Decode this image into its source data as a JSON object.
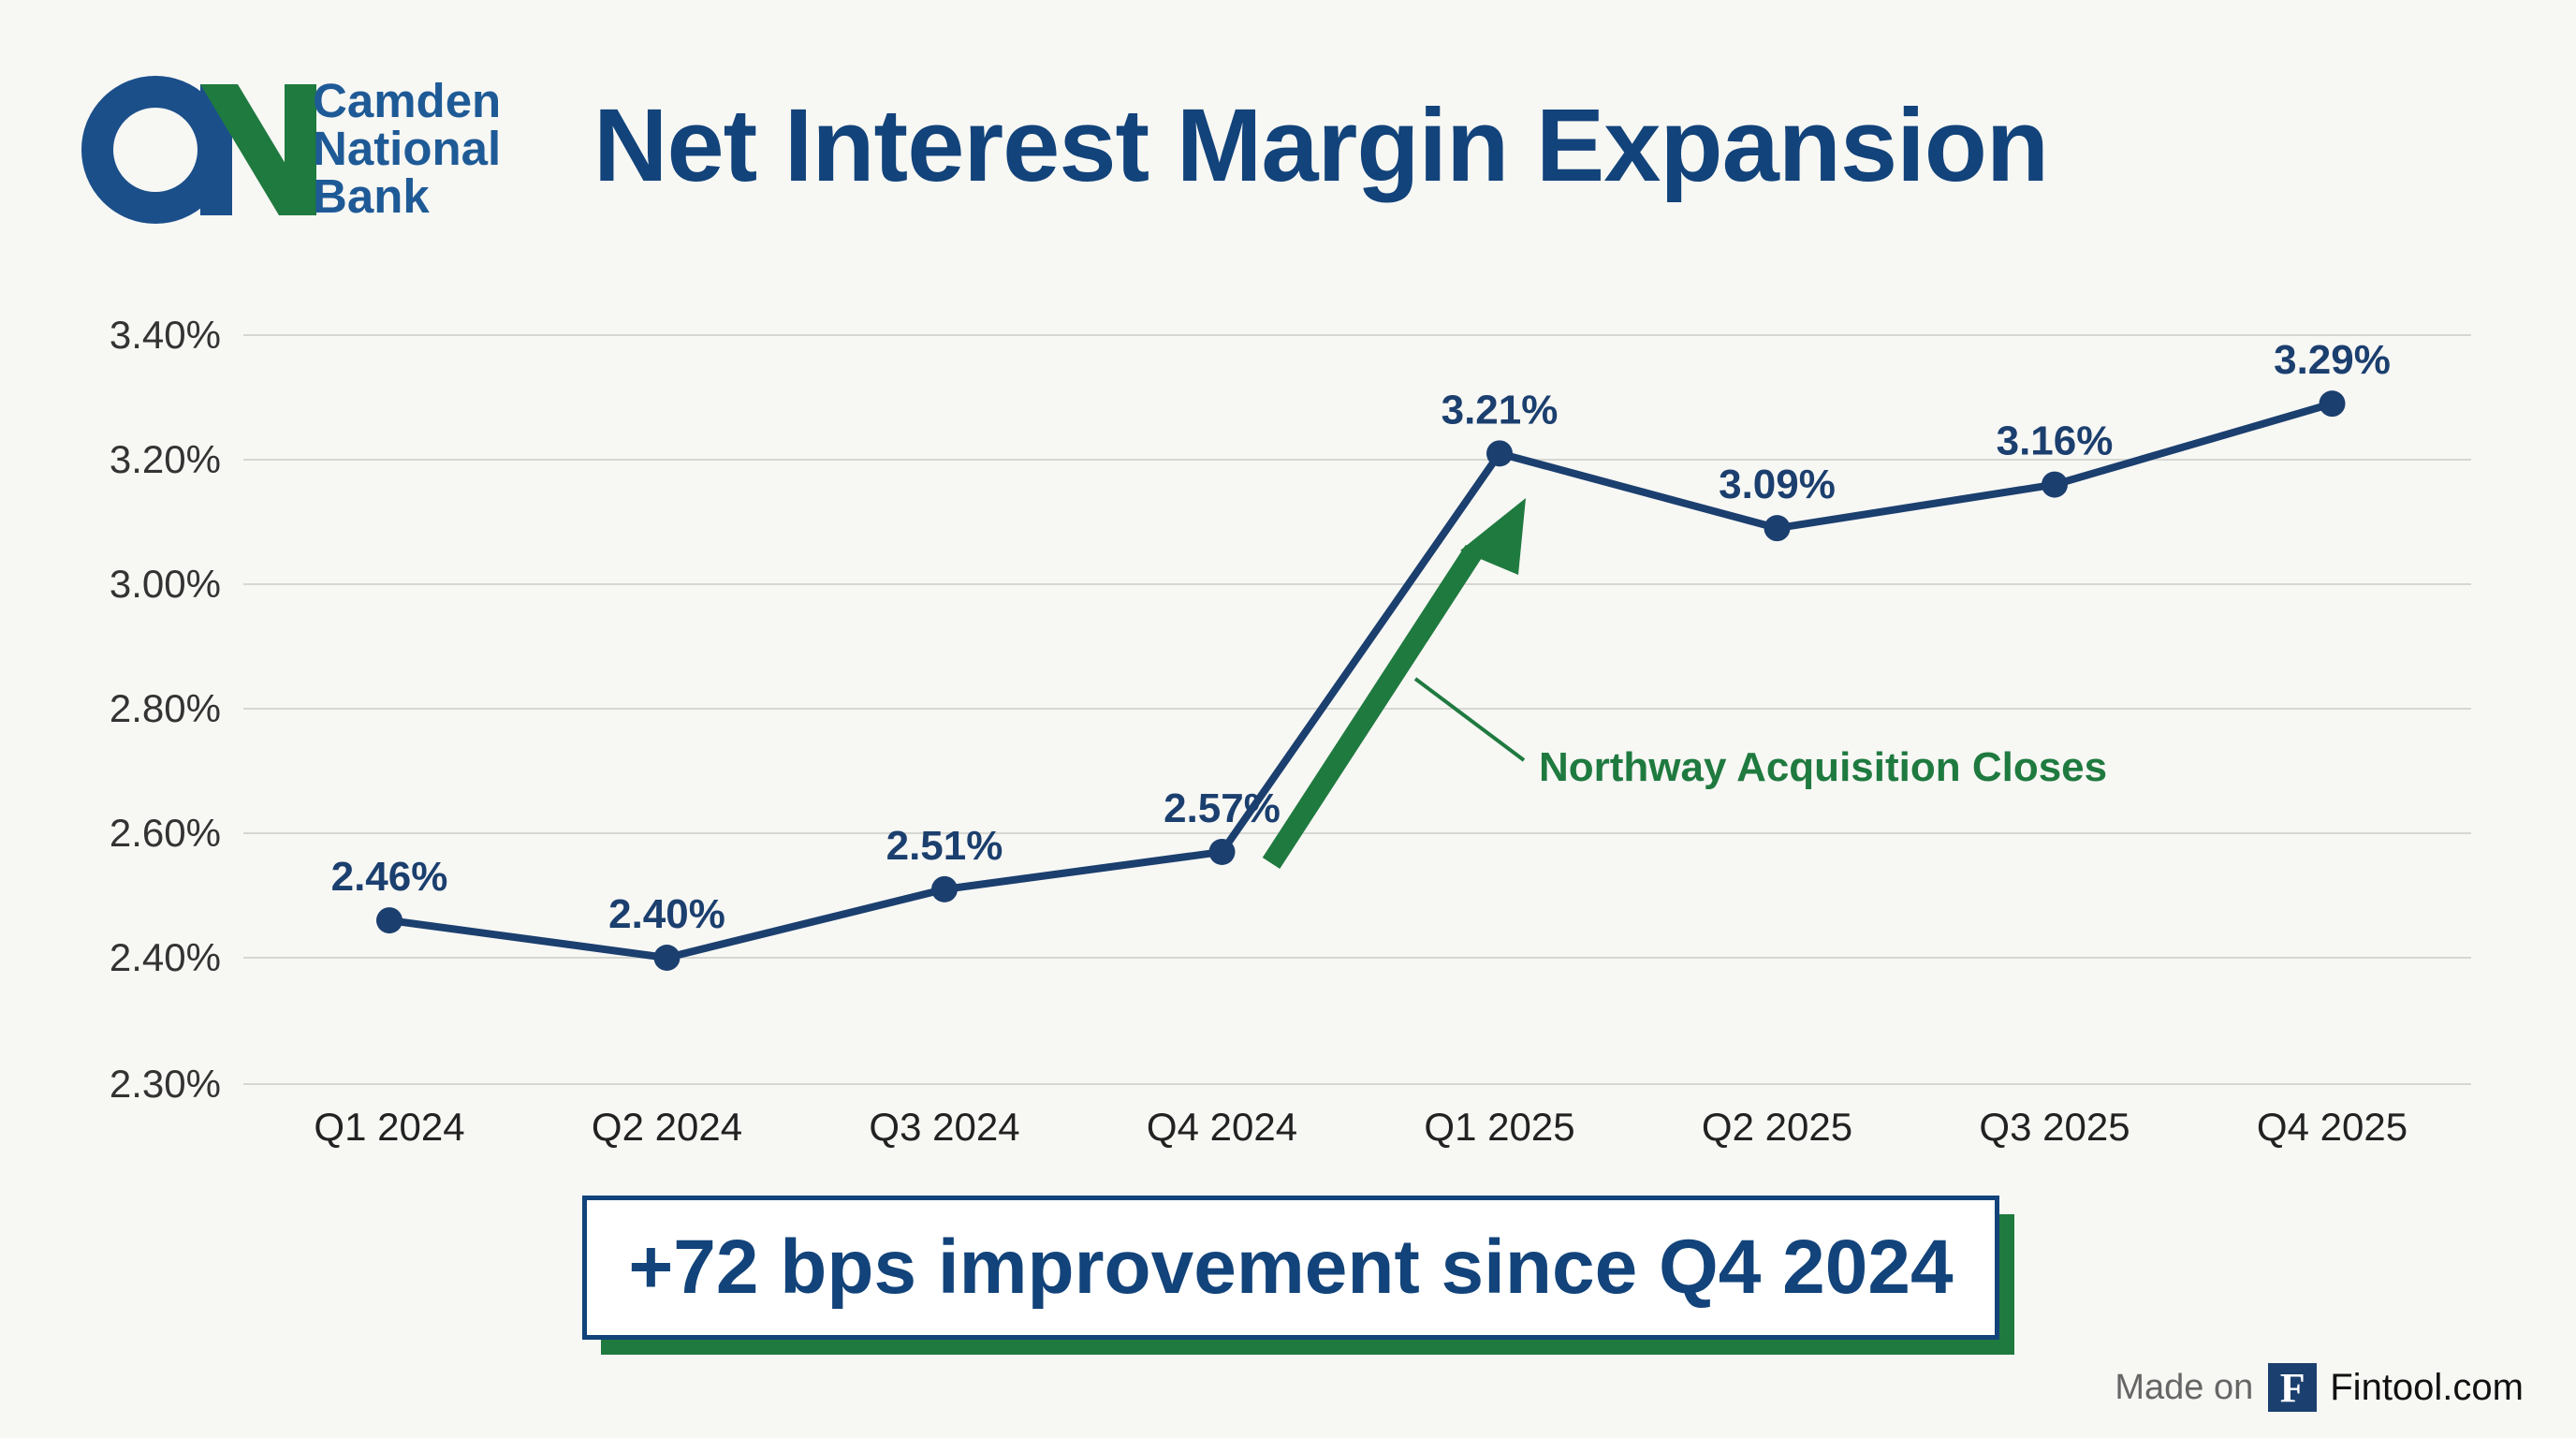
{
  "brand": {
    "name_line1": "Camden",
    "name_line2": "National",
    "name_line3": "Bank",
    "color_blue": "#12437a",
    "color_green": "#1f7a3f"
  },
  "title": "Net Interest Margin Expansion",
  "chart_data": {
    "type": "line",
    "title": "Net Interest Margin Expansion",
    "categories": [
      "Q1 2024",
      "Q2 2024",
      "Q3 2024",
      "Q4 2024",
      "Q1 2025",
      "Q2 2025",
      "Q3 2025",
      "Q4 2025"
    ],
    "series": [
      {
        "name": "Net Interest Margin",
        "values": [
          2.46,
          2.4,
          2.51,
          2.57,
          3.21,
          3.09,
          3.16,
          3.29
        ],
        "labels": [
          "2.46%",
          "2.40%",
          "2.51%",
          "2.57%",
          "3.21%",
          "3.09%",
          "3.16%",
          "3.29%"
        ],
        "color": "#1b3f6e"
      }
    ],
    "yticks": [
      {
        "value": 2.3,
        "label": "2.30%"
      },
      {
        "value": 2.4,
        "label": "2.40%"
      },
      {
        "value": 2.6,
        "label": "2.60%"
      },
      {
        "value": 2.8,
        "label": "2.80%"
      },
      {
        "value": 3.0,
        "label": "3.00%"
      },
      {
        "value": 3.2,
        "label": "3.20%"
      },
      {
        "value": 3.4,
        "label": "3.40%"
      }
    ],
    "grid": true,
    "annotation": {
      "text": "Northway Acquisition Closes",
      "color": "#1f7a3f"
    }
  },
  "callout": "+72 bps improvement since Q4 2024",
  "footer": {
    "made_on": "Made on",
    "logo_letter": "F",
    "site": "Fintool.com"
  }
}
